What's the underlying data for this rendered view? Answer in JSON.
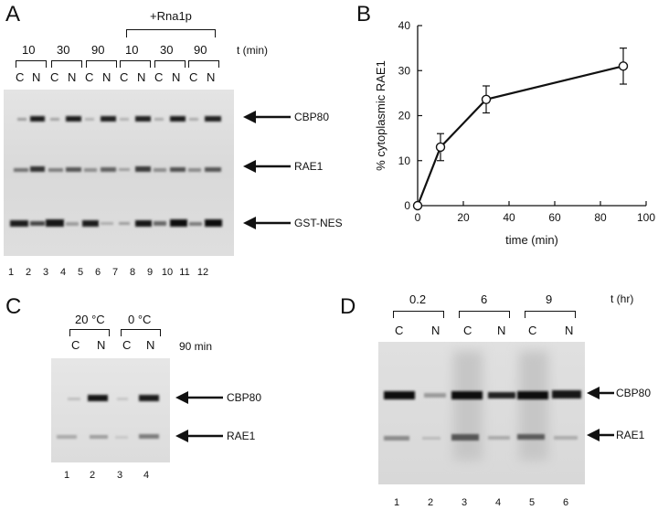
{
  "panels": {
    "A": {
      "letter": "A",
      "rna_label": "+Rna1p",
      "time_unit": "t (min)",
      "times": [
        "10",
        "30",
        "90",
        "10",
        "30",
        "90"
      ],
      "cn": [
        "C",
        "N"
      ],
      "bands": [
        "CBP80",
        "RAE1",
        "GST-NES"
      ],
      "lanes": [
        "1",
        "2",
        "3",
        "4",
        "5",
        "6",
        "7",
        "8",
        "9",
        "10",
        "11",
        "12"
      ]
    },
    "B": {
      "letter": "B"
    },
    "C": {
      "letter": "C",
      "temps": [
        "20 °C",
        "0 °C"
      ],
      "time_label": "90 min",
      "cn": [
        "C",
        "N"
      ],
      "bands": [
        "CBP80",
        "RAE1"
      ],
      "lanes": [
        "1",
        "2",
        "3",
        "4"
      ]
    },
    "D": {
      "letter": "D",
      "times": [
        "0.2",
        "6",
        "9"
      ],
      "time_unit": "t (hr)",
      "cn": [
        "C",
        "N"
      ],
      "bands": [
        "CBP80",
        "RAE1"
      ],
      "lanes": [
        "1",
        "2",
        "3",
        "4",
        "5",
        "6"
      ]
    }
  },
  "chart_data": {
    "type": "line",
    "title": "",
    "xlabel": "time  (min)",
    "ylabel": "% cytoplasmic RAE1",
    "xlim": [
      0,
      100
    ],
    "ylim": [
      0,
      40
    ],
    "xticks": [
      0,
      20,
      40,
      60,
      80,
      100
    ],
    "yticks": [
      0,
      10,
      20,
      30,
      40
    ],
    "x": [
      0,
      10,
      30,
      90
    ],
    "y": [
      0,
      13,
      23.6,
      31
    ],
    "error": [
      0,
      3,
      3,
      4
    ],
    "marker": "open-circle",
    "grid": false
  }
}
